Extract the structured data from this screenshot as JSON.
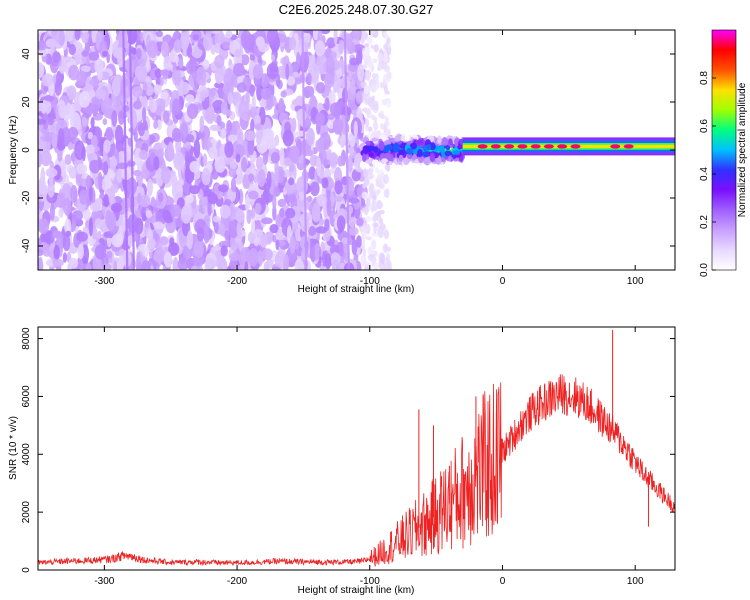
{
  "figure_title": "C2E6.2025.248.07.30.G27",
  "colors": {
    "snr_line": "#ee2222",
    "spectrogram_background": "#ffffff",
    "colormap": [
      "#ffffff",
      "#e8d8ff",
      "#c8a0ff",
      "#a060ff",
      "#7a10ff",
      "#3030ff",
      "#00c0ff",
      "#00ff80",
      "#a0ff00",
      "#ffe000",
      "#ff5000",
      "#ff0000",
      "#ff00ff"
    ]
  },
  "chart_data": [
    {
      "type": "heatmap",
      "title": "",
      "xlabel": "Height of straight line (km)",
      "ylabel": "Frequency (Hz)",
      "xlim": [
        -350,
        130
      ],
      "ylim": [
        -50,
        50
      ],
      "x_ticks": [
        -300,
        -200,
        -100,
        0,
        100
      ],
      "x_tick_labels": [
        "-300",
        "-200",
        "-100",
        "0",
        "100"
      ],
      "y_ticks": [
        -40,
        -20,
        0,
        20,
        40
      ],
      "y_tick_labels": [
        "-40",
        "-20",
        "0",
        "20",
        "40"
      ],
      "colorbar": {
        "label": "Normalized spectral amplitude",
        "range": [
          0,
          1
        ],
        "ticks": [
          0,
          0.2,
          0.4,
          0.6,
          0.8
        ],
        "tick_labels": [
          "0.0",
          "0.2",
          "0.4",
          "0.6",
          "0.8"
        ]
      },
      "regions": [
        {
          "description": "broadband noise (purple, amplitude ~0.1-0.2)",
          "x_range": [
            -350,
            -105
          ],
          "freq_range": [
            -50,
            50
          ]
        },
        {
          "description": "sparse faint noise",
          "x_range": [
            -105,
            -85
          ],
          "freq_range": [
            -50,
            50
          ]
        },
        {
          "description": "carrier onset, broadened line",
          "x_range": [
            -105,
            -30
          ],
          "center_freq": 0,
          "halfwidth_hz": [
            5,
            3
          ],
          "amplitude": [
            0.4,
            0.6
          ]
        },
        {
          "description": "steady carrier line",
          "x_range": [
            -30,
            130
          ],
          "center_freq": 1.5,
          "halfwidth_hz": 2.5,
          "amplitude_peak": 0.95
        }
      ],
      "vertical_streaks": [
        -285,
        -280,
        -150,
        -118
      ],
      "peak_markers": [
        -15,
        -5,
        5,
        15,
        25,
        35,
        45,
        55,
        85,
        95
      ]
    },
    {
      "type": "line",
      "title": "",
      "xlabel": "Height of straight line (km)",
      "ylabel": "SNR (10 * v/v)",
      "xlim": [
        -350,
        130
      ],
      "ylim": [
        0,
        8400
      ],
      "x_ticks": [
        -300,
        -200,
        -100,
        0,
        100
      ],
      "x_tick_labels": [
        "-300",
        "-200",
        "-100",
        "0",
        "100"
      ],
      "y_ticks": [
        0,
        2000,
        4000,
        6000,
        8000
      ],
      "y_tick_labels": [
        "0",
        "2000",
        "4000",
        "6000",
        "8000"
      ],
      "series": [
        {
          "name": "SNR",
          "x": [
            -350,
            -330,
            -310,
            -295,
            -285,
            -280,
            -270,
            -250,
            -230,
            -210,
            -190,
            -170,
            -150,
            -130,
            -115,
            -105,
            -95,
            -85,
            -75,
            -65,
            -55,
            -45,
            -35,
            -25,
            -15,
            -5,
            5,
            15,
            25,
            35,
            45,
            55,
            65,
            75,
            85,
            95,
            105,
            115,
            125,
            130
          ],
          "values": [
            250,
            300,
            330,
            380,
            500,
            480,
            350,
            260,
            280,
            250,
            260,
            300,
            280,
            270,
            280,
            300,
            500,
            800,
            1100,
            1400,
            1700,
            2100,
            2500,
            3000,
            3500,
            3800,
            4400,
            5100,
            5600,
            5900,
            6100,
            6000,
            5700,
            5200,
            4700,
            4100,
            3400,
            2900,
            2400,
            2200
          ],
          "spikes": [
            {
              "x": -63,
              "value": 5550
            },
            {
              "x": -52,
              "value": 5000
            },
            {
              "x": -40,
              "value": 3600
            },
            {
              "x": -20,
              "value": 6000
            },
            {
              "x": 83,
              "value": 8300
            },
            {
              "x": 110,
              "value": 1500
            }
          ]
        }
      ]
    }
  ]
}
